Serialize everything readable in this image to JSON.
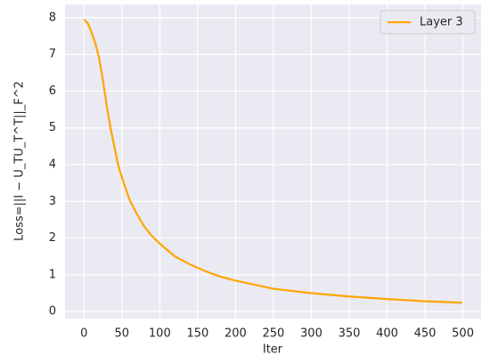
{
  "chart_data": {
    "type": "line",
    "xlabel": "Iter",
    "ylabel": "Loss=||I − U_TU_T^T||_F^2",
    "x": [
      0,
      5,
      10,
      15,
      20,
      25,
      30,
      35,
      40,
      45,
      50,
      60,
      70,
      80,
      90,
      100,
      120,
      140,
      160,
      180,
      200,
      250,
      300,
      350,
      400,
      450,
      499
    ],
    "series": [
      {
        "name": "Layer 3",
        "color": "#ffa500",
        "values": [
          7.95,
          7.85,
          7.6,
          7.3,
          6.9,
          6.3,
          5.6,
          5.0,
          4.5,
          4.0,
          3.65,
          3.05,
          2.65,
          2.3,
          2.05,
          1.85,
          1.5,
          1.28,
          1.1,
          0.95,
          0.84,
          0.62,
          0.5,
          0.41,
          0.34,
          0.28,
          0.24
        ]
      }
    ],
    "xlim": [
      -25,
      524
    ],
    "ylim": [
      -0.19,
      8.36
    ],
    "xticks": [
      0,
      50,
      100,
      150,
      200,
      250,
      300,
      350,
      400,
      450,
      500
    ],
    "yticks": [
      0,
      1,
      2,
      3,
      4,
      5,
      6,
      7,
      8
    ],
    "grid": true,
    "legend": "upper right"
  }
}
